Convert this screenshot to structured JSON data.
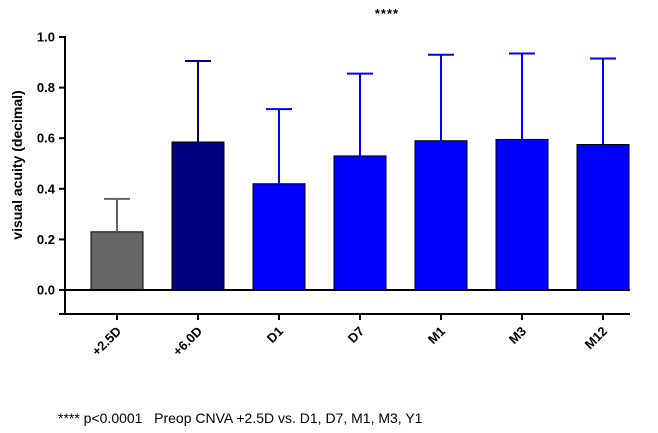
{
  "chart_data": {
    "type": "bar",
    "ylabel": "visual acuity (decimal)",
    "xlabel": "",
    "ylim": [
      -0.1,
      1.0
    ],
    "yticks": [
      "1.0",
      "0.8",
      "0.6",
      "0.4",
      "0.2",
      "0.0"
    ],
    "ytick_values": [
      1.0,
      0.8,
      0.6,
      0.4,
      0.2,
      0.0
    ],
    "categories": [
      "+2.5D",
      "+6.0D",
      "D1",
      "D7",
      "M1",
      "M3",
      "M12"
    ],
    "values": [
      0.23,
      0.585,
      0.42,
      0.53,
      0.59,
      0.595,
      0.575
    ],
    "error_upper": [
      0.36,
      0.905,
      0.715,
      0.855,
      0.93,
      0.935,
      0.915
    ],
    "colors": [
      "#666666",
      "#000080",
      "#0000ff",
      "#0000ff",
      "#0000ff",
      "#0000ff",
      "#0000ff"
    ],
    "error_colors": [
      "#666666",
      "#000080",
      "#0000ff",
      "#0000ff",
      "#0000ff",
      "#0000ff",
      "#0000ff"
    ],
    "significance_label": "****",
    "significance_over": "M1",
    "footnote": "**** p<0.0001   Preop CNVA +2.5D vs. D1, D7, M1, M3, Y1",
    "grid": false
  }
}
